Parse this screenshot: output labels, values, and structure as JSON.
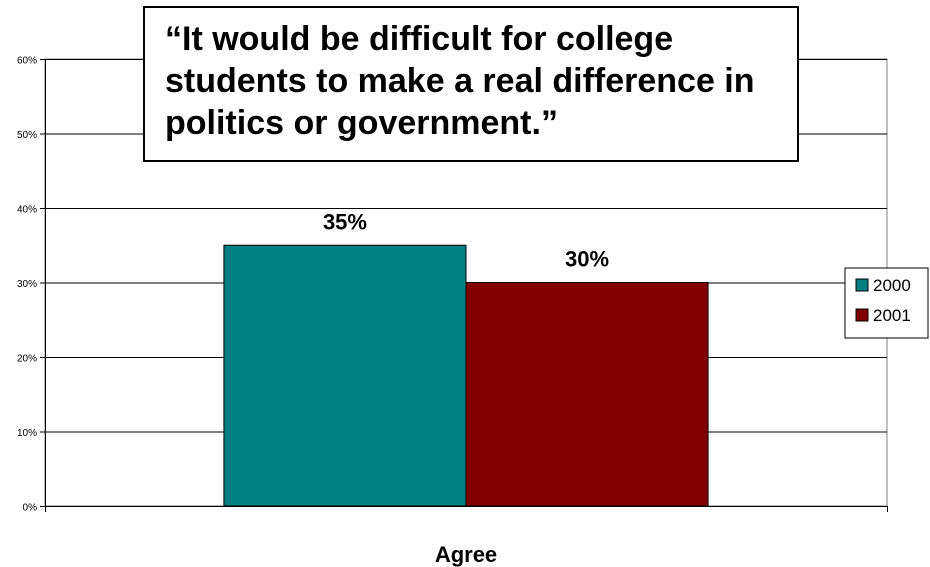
{
  "chart_data": {
    "type": "bar",
    "title": "“It would be difficult for college students to make a real difference in politics or government.”",
    "categories": [
      "Agree"
    ],
    "series": [
      {
        "name": "2000",
        "values": [
          35
        ],
        "color": "#008080",
        "label": "35%"
      },
      {
        "name": "2001",
        "values": [
          30
        ],
        "color": "#800000",
        "label": "30%"
      }
    ],
    "ylim": [
      0,
      60
    ],
    "yticks": [
      "0%",
      "10%",
      "20%",
      "30%",
      "40%",
      "50%",
      "60%"
    ],
    "ytick_values": [
      0,
      10,
      20,
      30,
      40,
      50,
      60
    ],
    "grid": true,
    "legend": "right"
  }
}
